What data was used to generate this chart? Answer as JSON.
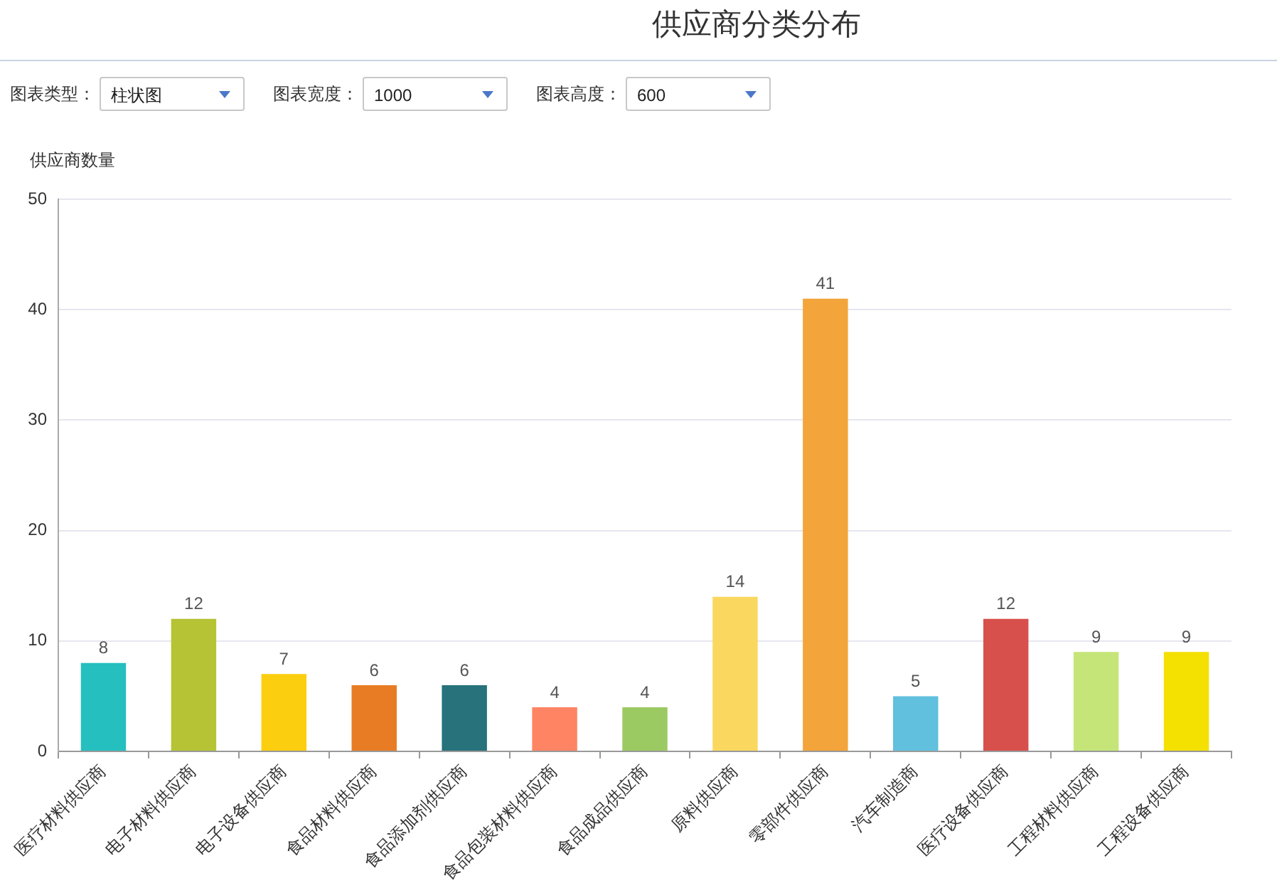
{
  "chart_data": {
    "type": "bar",
    "title": "供应商分类分布",
    "ylabel": "供应商数量",
    "annotations": [
      "图表类型：",
      "柱状图",
      "图表宽度：",
      "1000",
      "图表高度：",
      "600"
    ],
    "categories": [
      "医疗材料供应商",
      "电子材料供应商",
      "电子设备供应商",
      "食品材料供应商",
      "食品添加剂供应商",
      "食品包装材料供应商",
      "食品成品供应商",
      "原料供应商",
      "零部件供应商",
      "汽车制造商",
      "医疗设备供应商",
      "工程材料供应商",
      "工程设备供应商"
    ],
    "values": [
      8,
      12,
      7,
      6,
      6,
      4,
      4,
      14,
      41,
      5,
      12,
      9,
      9
    ],
    "colors": [
      "#26bfbf",
      "#b5c334",
      "#fcce10",
      "#e87c25",
      "#27727b",
      "#fe8463",
      "#9bca63",
      "#fad860",
      "#f3a43b",
      "#60c0dd",
      "#d7504b",
      "#c6e579",
      "#f4e001"
    ],
    "ylim": [
      0,
      50
    ],
    "yticks": [
      0,
      10,
      20,
      30,
      40,
      50
    ],
    "grid": "y",
    "data_labels": true
  }
}
